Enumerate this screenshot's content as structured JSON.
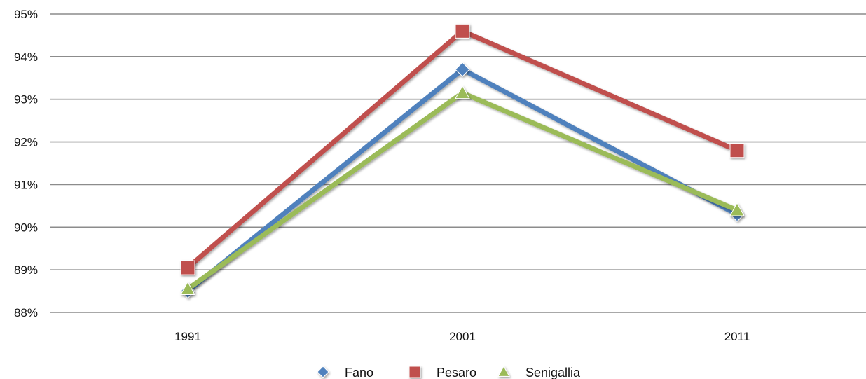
{
  "chart_data": {
    "type": "line",
    "categories": [
      "1991",
      "2001",
      "2011"
    ],
    "series": [
      {
        "name": "Fano",
        "values": [
          88.5,
          93.7,
          90.3
        ],
        "color": "#4F81BD",
        "marker": "diamond"
      },
      {
        "name": "Pesaro",
        "values": [
          89.05,
          94.6,
          91.8
        ],
        "color": "#C0504D",
        "marker": "square"
      },
      {
        "name": "Senigallia",
        "values": [
          88.55,
          93.15,
          90.4
        ],
        "color": "#9BBB59",
        "marker": "triangle"
      }
    ],
    "ylim": [
      88,
      95
    ],
    "yticks": [
      "88%",
      "89%",
      "90%",
      "91%",
      "92%",
      "93%",
      "94%",
      "95%"
    ],
    "grid": true,
    "legend_position": "bottom"
  }
}
